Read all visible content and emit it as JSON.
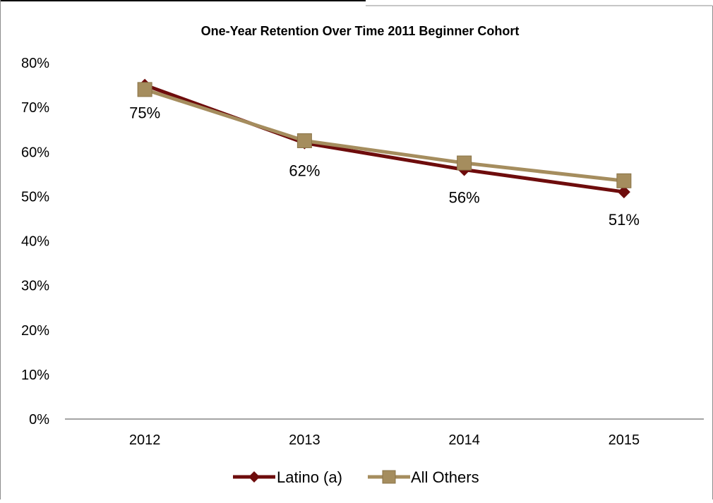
{
  "chart_data": {
    "type": "line",
    "title": "One-Year Retention Over Time  2011 Beginner Cohort",
    "categories": [
      "2012",
      "2013",
      "2014",
      "2015"
    ],
    "ylim": [
      0,
      80
    ],
    "yticks": [
      "0%",
      "10%",
      "20%",
      "30%",
      "40%",
      "50%",
      "60%",
      "70%",
      "80%"
    ],
    "grid": false,
    "legend_position": "bottom",
    "series": [
      {
        "name": "Latino (a)",
        "values": [
          75,
          62,
          56,
          51
        ],
        "labels": [
          "75%",
          "62%",
          "56%",
          "51%"
        ],
        "color": "#6e0c0c",
        "marker": "diamond"
      },
      {
        "name": "All Others",
        "values": [
          74,
          62.5,
          57.5,
          53.5
        ],
        "color": "#a58d5e",
        "marker": "square"
      }
    ]
  }
}
